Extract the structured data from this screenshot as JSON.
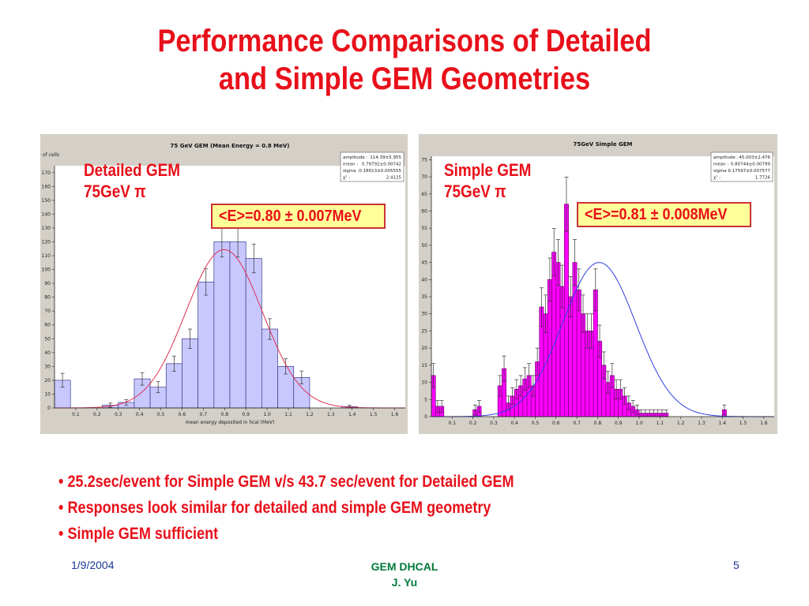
{
  "slide": {
    "title_line1": "Performance Comparisons of Detailed",
    "title_line2": "and Simple GEM Geometries",
    "bullets": [
      "25.2sec/event for Simple GEM v/s 43.7 sec/event for Detailed GEM",
      "Responses look similar for detailed and simple GEM geometry",
      "Simple GEM sufficient"
    ],
    "bullet_symbol": "•",
    "footer": {
      "date": "1/9/2004",
      "center_line1": "GEM DHCAL",
      "center_line2": "J. Yu",
      "page": "5"
    },
    "colors": {
      "title": "#e8101a",
      "footer_center": "#007a3a"
    }
  },
  "chart_data": [
    {
      "type": "bar",
      "title": "75 GeV GEM (Mean Energy = 0.8 MeV)",
      "ylabel": "# of cells",
      "xlabel": "mean energy deposited in hcal (MeV)",
      "label_line1": "Detailed GEM",
      "label_line2": "75GeV π",
      "mean_box": "<E>=0.80 ± 0.007MeV",
      "stats": [
        "amplitude :",
        "114.39±5.955",
        "mean :",
        "0.79792±0.00742",
        "sigma :",
        "0.18013±0.005555",
        "χ² :",
        "2.4125"
      ],
      "bar_color": "#c8c8ff",
      "bar_edge": "#3a3a8a",
      "fit_color": "#e03050",
      "xlim": [
        0,
        1.65
      ],
      "ylim": [
        0,
        175
      ],
      "xticks": [
        "0.1",
        "0.2",
        "0.3",
        "0.4",
        "0.5",
        "0.6",
        "0.7",
        "0.8",
        "0.9",
        "1.0",
        "1.1",
        "1.2",
        "1.3",
        "1.4",
        "1.5",
        "1.6"
      ],
      "yticks": [
        "0",
        "10",
        "20",
        "30",
        "40",
        "50",
        "60",
        "70",
        "80",
        "90",
        "100",
        "110",
        "120",
        "130",
        "140",
        "150",
        "160",
        "170"
      ],
      "bin_width": 0.075,
      "bins_start": [
        0.0,
        0.15,
        0.225,
        0.3,
        0.375,
        0.45,
        0.525,
        0.6,
        0.675,
        0.75,
        0.825,
        0.9,
        0.975,
        1.05,
        1.125,
        1.2,
        1.275,
        1.35
      ],
      "values": [
        20,
        0,
        2,
        4,
        21,
        15,
        32,
        50,
        91,
        120,
        120,
        108,
        57,
        30,
        22,
        0,
        0,
        1
      ],
      "errors": [
        5,
        0,
        1.5,
        2,
        4.5,
        4,
        5.5,
        7,
        9.5,
        11,
        11,
        10.4,
        7.5,
        5.5,
        4.7,
        0,
        0,
        1
      ],
      "fit": {
        "amplitude": 114.39,
        "mean": 0.79792,
        "sigma": 0.18013
      }
    },
    {
      "type": "bar",
      "title": "75GeV Simple GEM",
      "label_line1": "Simple GEM",
      "label_line2": "75GeV π",
      "mean_box": "<E>=0.81 ± 0.008MeV",
      "stats": [
        "amplitude :",
        "45.003±2.476",
        "mean :",
        "0.80744±0.00799",
        "sigma :",
        "0.17597±0.007577",
        "χ² :",
        "1.7726"
      ],
      "bar_color": "#ff00ff",
      "bar_edge": "#7a007a",
      "fit_color": "#3040e0",
      "xlim": [
        0,
        1.65
      ],
      "ylim": [
        0,
        76
      ],
      "xticks": [
        "0.1",
        "0.2",
        "0.3",
        "0.4",
        "0.5",
        "0.6",
        "0.7",
        "0.8",
        "0.9",
        "1.0",
        "1.1",
        "1.2",
        "1.3",
        "1.4",
        "1.5",
        "1.6"
      ],
      "yticks": [
        "0",
        "5",
        "10",
        "15",
        "20",
        "25",
        "30",
        "35",
        "40",
        "45",
        "50",
        "55",
        "60",
        "65",
        "70",
        "75"
      ],
      "bin_width": 0.02,
      "bins_start": [
        0.0,
        0.02,
        0.04,
        0.2,
        0.22,
        0.32,
        0.34,
        0.36,
        0.38,
        0.4,
        0.42,
        0.44,
        0.46,
        0.48,
        0.5,
        0.52,
        0.54,
        0.56,
        0.58,
        0.6,
        0.62,
        0.64,
        0.66,
        0.68,
        0.7,
        0.72,
        0.74,
        0.76,
        0.78,
        0.8,
        0.82,
        0.84,
        0.86,
        0.88,
        0.9,
        0.92,
        0.94,
        0.96,
        0.98,
        1.0,
        1.02,
        1.04,
        1.06,
        1.08,
        1.1,
        1.12,
        1.4
      ],
      "values": [
        12,
        3,
        3,
        2,
        3,
        9,
        14,
        4,
        6,
        8,
        9,
        11,
        12,
        9,
        16,
        32,
        30,
        40,
        48,
        45,
        38,
        62,
        35,
        45,
        37,
        30,
        25,
        25,
        37,
        22,
        15,
        10,
        12,
        8,
        8,
        6,
        4,
        3,
        2,
        1,
        1,
        1,
        1,
        1,
        1,
        1,
        2
      ],
      "errors": [
        3.5,
        1.7,
        1.7,
        1.4,
        1.7,
        3,
        3.7,
        2,
        2.4,
        2.8,
        3,
        3.3,
        3.5,
        3,
        4,
        5.6,
        5.5,
        6.3,
        6.9,
        6.7,
        6.2,
        7.9,
        5.9,
        6.7,
        6.1,
        5.5,
        5,
        5,
        6.1,
        4.7,
        3.9,
        3.2,
        3.5,
        2.8,
        2.8,
        2.4,
        2,
        1.7,
        1.4,
        1,
        1,
        1,
        1,
        1,
        1,
        1,
        1.4
      ],
      "fit": {
        "amplitude": 45.003,
        "mean": 0.80744,
        "sigma": 0.17597
      }
    }
  ]
}
